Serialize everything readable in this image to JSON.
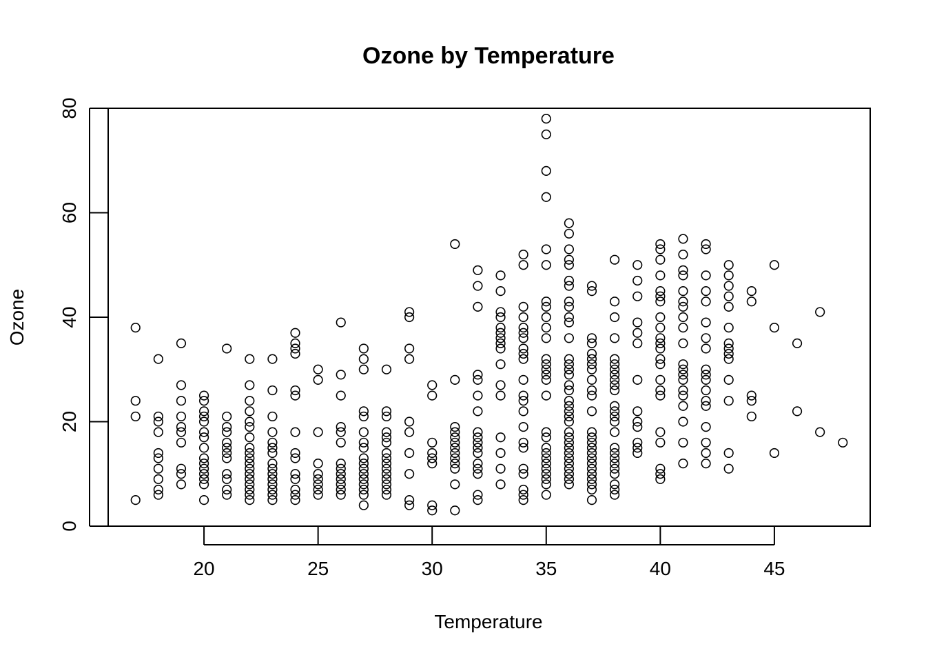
{
  "chart_data": {
    "type": "scatter",
    "title": "Ozone by Temperature",
    "xlabel": "Temperature",
    "ylabel": "Ozone",
    "xlim": [
      15.8,
      49.2
    ],
    "ylim": [
      0,
      80
    ],
    "xticks": [
      20,
      25,
      30,
      35,
      40,
      45
    ],
    "yticks": [
      0,
      20,
      40,
      60,
      80
    ],
    "grid": false,
    "marker": "open-circle",
    "colors": {
      "point_stroke": "#000000",
      "background": "#ffffff"
    },
    "points_by_x": [
      {
        "x": 17,
        "y": [
          38,
          24,
          21,
          5
        ]
      },
      {
        "x": 18,
        "y": [
          32,
          21,
          20,
          18,
          14,
          13,
          11,
          9,
          7,
          6
        ]
      },
      {
        "x": 19,
        "y": [
          35,
          27,
          24,
          21,
          19,
          18,
          16,
          11,
          10,
          8
        ]
      },
      {
        "x": 20,
        "y": [
          25,
          24,
          22,
          21,
          20,
          18,
          17,
          15,
          13,
          12,
          11,
          10,
          9,
          8,
          5
        ]
      },
      {
        "x": 21,
        "y": [
          34,
          21,
          19,
          18,
          16,
          15,
          14,
          13,
          10,
          9,
          7,
          6
        ]
      },
      {
        "x": 22,
        "y": [
          32,
          27,
          24,
          22,
          20,
          19,
          17,
          15,
          14,
          13,
          12,
          11,
          10,
          9,
          8,
          7,
          6,
          5
        ]
      },
      {
        "x": 23,
        "y": [
          32,
          26,
          21,
          18,
          16,
          15,
          14,
          12,
          11,
          10,
          9,
          8,
          7,
          6,
          5
        ]
      },
      {
        "x": 24,
        "y": [
          37,
          35,
          34,
          33,
          26,
          25,
          18,
          14,
          13,
          10,
          9,
          7,
          6,
          5
        ]
      },
      {
        "x": 25,
        "y": [
          30,
          28,
          18,
          12,
          10,
          9,
          8,
          7,
          6
        ]
      },
      {
        "x": 26,
        "y": [
          39,
          29,
          25,
          19,
          18,
          16,
          12,
          11,
          10,
          9,
          8,
          7,
          6
        ]
      },
      {
        "x": 27,
        "y": [
          34,
          32,
          30,
          22,
          21,
          18,
          16,
          15,
          13,
          12,
          11,
          10,
          9,
          8,
          7,
          6,
          4
        ]
      },
      {
        "x": 28,
        "y": [
          30,
          22,
          21,
          18,
          17,
          16,
          14,
          13,
          12,
          11,
          10,
          9,
          8,
          7,
          6
        ]
      },
      {
        "x": 29,
        "y": [
          41,
          40,
          34,
          32,
          20,
          18,
          14,
          10,
          5,
          4
        ]
      },
      {
        "x": 30,
        "y": [
          27,
          25,
          16,
          14,
          13,
          12,
          4,
          3
        ]
      },
      {
        "x": 31,
        "y": [
          54,
          28,
          19,
          18,
          17,
          16,
          15,
          14,
          13,
          12,
          11,
          8,
          3
        ]
      },
      {
        "x": 32,
        "y": [
          49,
          46,
          42,
          29,
          28,
          25,
          22,
          18,
          17,
          16,
          15,
          14,
          12,
          11,
          10,
          6,
          5
        ]
      },
      {
        "x": 33,
        "y": [
          48,
          45,
          41,
          40,
          38,
          37,
          36,
          35,
          34,
          31,
          27,
          25,
          17,
          14,
          11,
          8
        ]
      },
      {
        "x": 34,
        "y": [
          52,
          50,
          42,
          40,
          38,
          37,
          36,
          34,
          33,
          32,
          28,
          25,
          24,
          22,
          19,
          16,
          15,
          11,
          10,
          7,
          6,
          5
        ]
      },
      {
        "x": 35,
        "y": [
          78,
          75,
          68,
          63,
          53,
          50,
          43,
          42,
          40,
          38,
          36,
          32,
          31,
          30,
          29,
          28,
          25,
          18,
          17,
          15,
          14,
          13,
          12,
          11,
          10,
          9,
          8,
          6
        ]
      },
      {
        "x": 36,
        "y": [
          58,
          56,
          53,
          51,
          50,
          47,
          46,
          43,
          42,
          40,
          39,
          36,
          32,
          31,
          30,
          29,
          27,
          26,
          24,
          23,
          22,
          21,
          20,
          18,
          17,
          16,
          15,
          14,
          13,
          12,
          11,
          10,
          9,
          8
        ]
      },
      {
        "x": 37,
        "y": [
          46,
          45,
          36,
          35,
          33,
          32,
          31,
          30,
          28,
          26,
          25,
          22,
          18,
          17,
          16,
          15,
          14,
          13,
          12,
          11,
          10,
          9,
          8,
          7,
          5
        ]
      },
      {
        "x": 38,
        "y": [
          51,
          43,
          40,
          36,
          32,
          31,
          30,
          29,
          28,
          27,
          26,
          23,
          22,
          21,
          20,
          18,
          15,
          14,
          13,
          12,
          11,
          10,
          8,
          7,
          6
        ]
      },
      {
        "x": 39,
        "y": [
          50,
          47,
          44,
          39,
          37,
          35,
          28,
          22,
          20,
          19,
          16,
          15,
          14
        ]
      },
      {
        "x": 40,
        "y": [
          54,
          53,
          51,
          48,
          45,
          44,
          43,
          40,
          38,
          36,
          35,
          34,
          32,
          31,
          28,
          26,
          25,
          18,
          16,
          11,
          10,
          9
        ]
      },
      {
        "x": 41,
        "y": [
          55,
          52,
          49,
          48,
          45,
          43,
          42,
          40,
          38,
          35,
          31,
          30,
          29,
          28,
          26,
          25,
          23,
          20,
          16,
          12
        ]
      },
      {
        "x": 42,
        "y": [
          54,
          53,
          48,
          45,
          43,
          39,
          36,
          34,
          30,
          29,
          28,
          26,
          24,
          23,
          19,
          16,
          14,
          12
        ]
      },
      {
        "x": 43,
        "y": [
          50,
          48,
          46,
          44,
          42,
          38,
          35,
          34,
          33,
          32,
          28,
          24,
          14,
          11
        ]
      },
      {
        "x": 44,
        "y": [
          45,
          43,
          25,
          24,
          21
        ]
      },
      {
        "x": 45,
        "y": [
          50,
          38,
          14
        ]
      },
      {
        "x": 46,
        "y": [
          35,
          22
        ]
      },
      {
        "x": 47,
        "y": [
          41,
          18
        ]
      },
      {
        "x": 48,
        "y": [
          16
        ]
      }
    ]
  }
}
